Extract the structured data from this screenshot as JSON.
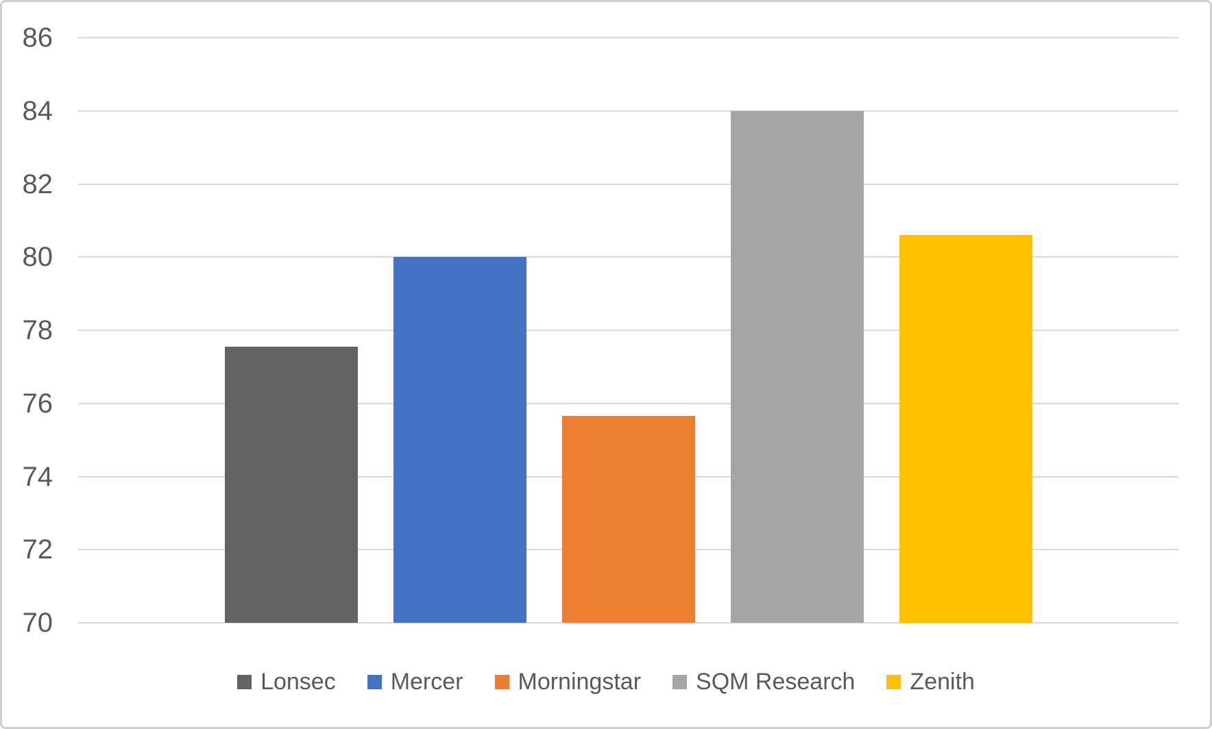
{
  "chart_data": {
    "type": "bar",
    "title": "",
    "xlabel": "",
    "ylabel": "",
    "categories": [
      "Lonsec",
      "Mercer",
      "Morningstar",
      "SQM Research",
      "Zenith"
    ],
    "values": [
      77.55,
      80,
      75.65,
      84,
      80.6
    ],
    "series_colors": [
      "#636363",
      "#4472C4",
      "#ED7D31",
      "#A5A5A5",
      "#FFC000"
    ],
    "ylim": [
      70,
      86
    ],
    "yticks": [
      70,
      72,
      74,
      76,
      78,
      80,
      82,
      84,
      86
    ],
    "grid": "horizontal",
    "gridline_color": "#d9d9d9",
    "axis_label_color": "#595959",
    "legend_position": "bottom"
  }
}
